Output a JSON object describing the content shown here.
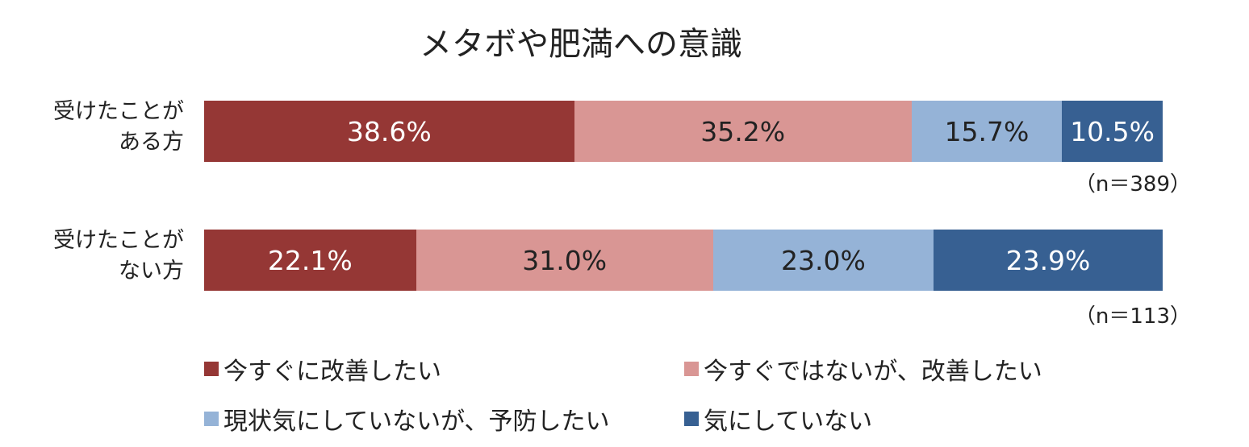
{
  "chart_data": {
    "type": "bar",
    "orientation": "horizontal",
    "stacked": "100%",
    "title": "メタボや肥満への意識",
    "categories": [
      "受けたことがある方",
      "受けたことがない方"
    ],
    "category_lines": [
      [
        "受けたことが",
        "ある方"
      ],
      [
        "受けたことが",
        "ない方"
      ]
    ],
    "sample_sizes": [
      "（n＝389）",
      "（n＝113）"
    ],
    "series": [
      {
        "name": "今すぐに改善したい",
        "color": "#953735",
        "values": [
          38.6,
          22.1
        ],
        "text_color": "#ffffff"
      },
      {
        "name": "今すぐではないが、改善したい",
        "color": "#D99694",
        "values": [
          35.2,
          31.0
        ],
        "text_color": "#222222"
      },
      {
        "name": "現状気にしていないが、予防したい",
        "color": "#95B3D7",
        "values": [
          15.7,
          23.0
        ],
        "text_color": "#222222"
      },
      {
        "name": "気にしていない",
        "color": "#376092",
        "values": [
          10.5,
          23.9
        ],
        "text_color": "#ffffff"
      }
    ],
    "value_format": "{v}%",
    "legend": "bottom",
    "grid": false
  }
}
